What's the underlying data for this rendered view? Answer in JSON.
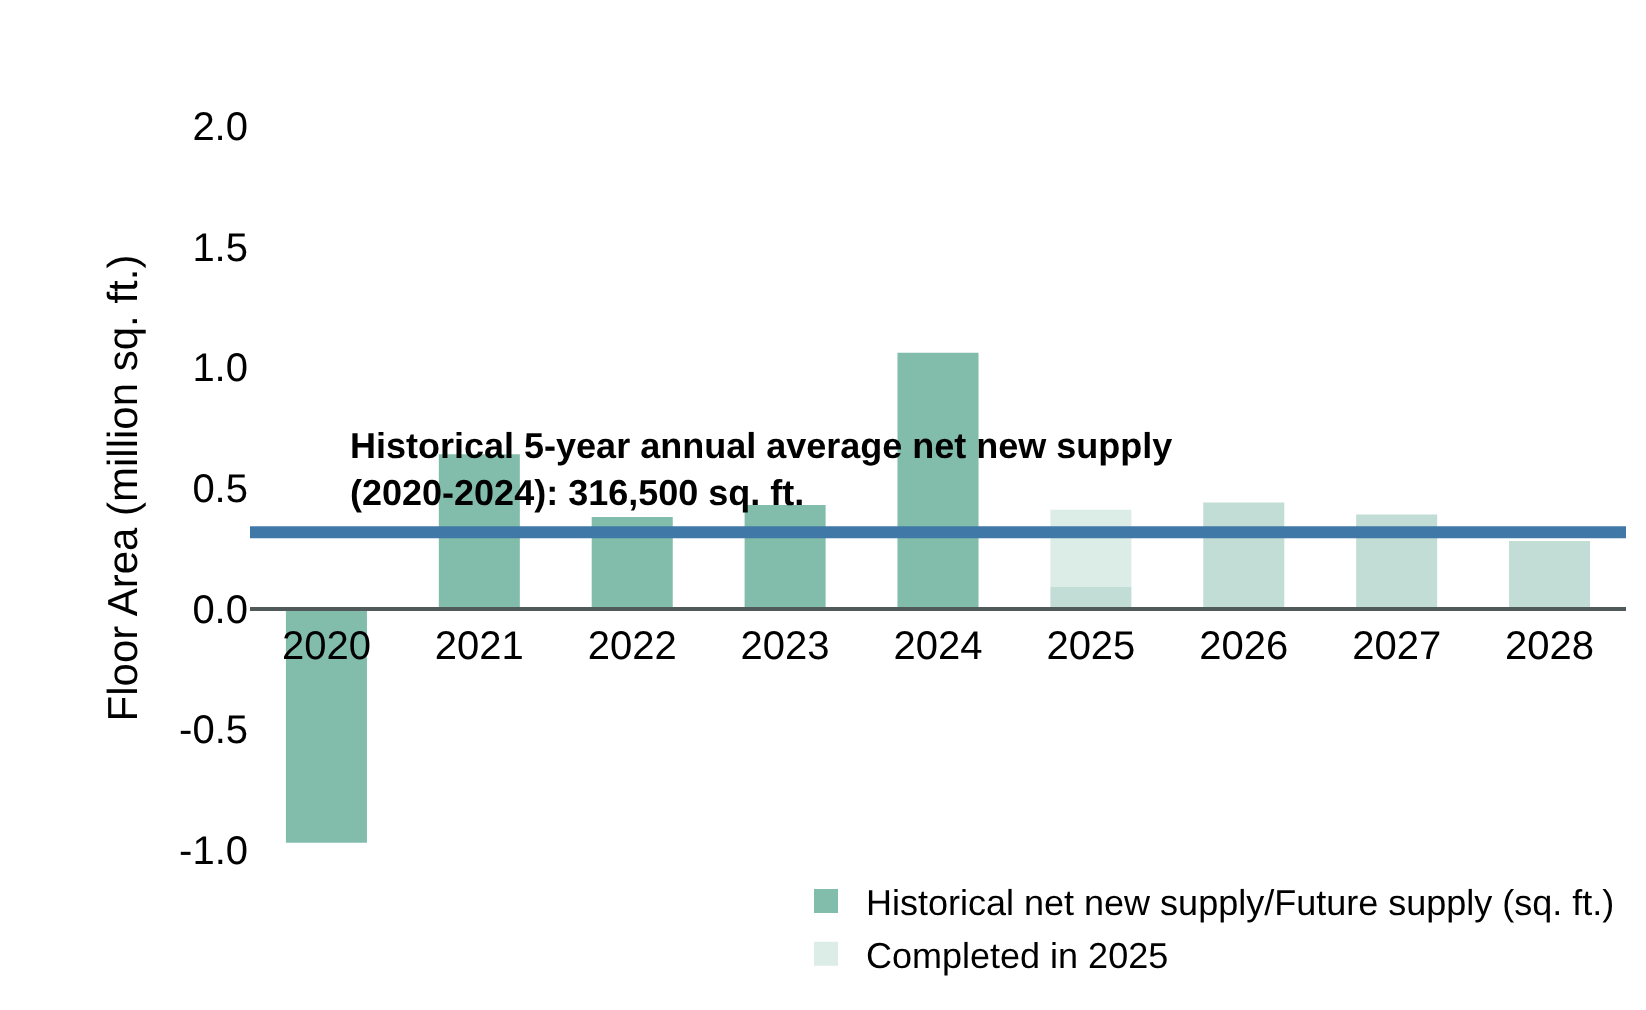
{
  "chart_data": {
    "type": "bar",
    "stacked": true,
    "ylabel": "Floor Area (million sq. ft.)",
    "categories": [
      "2020",
      "2021",
      "2022",
      "2023",
      "2024",
      "2025",
      "2026",
      "2027",
      "2028"
    ],
    "series": [
      {
        "name": "Historical net new supply/Future supply (sq. ft.)",
        "color": "#82bcab",
        "colors": [
          "#82bcab",
          "#82bcab",
          "#82bcab",
          "#82bcab",
          "#82bcab",
          "#c1ddd5",
          "#c1ddd5",
          "#c1ddd5",
          "#c1ddd5"
        ],
        "values": [
          -0.97,
          0.64,
          0.38,
          0.43,
          1.06,
          0.09,
          0.44,
          0.39,
          0.28
        ]
      },
      {
        "name": "Completed in 2025",
        "color": "#dcece7",
        "values": [
          null,
          null,
          null,
          null,
          null,
          0.32,
          null,
          null,
          null
        ]
      }
    ],
    "ylim": [
      -1.0,
      2.0
    ],
    "yticks": [
      {
        "value": -1.0,
        "label": "-1.0"
      },
      {
        "value": -0.5,
        "label": "-0.5"
      },
      {
        "value": 0.0,
        "label": "0.0"
      },
      {
        "value": 0.5,
        "label": "0.5"
      },
      {
        "value": 1.0,
        "label": "1.0"
      },
      {
        "value": 1.5,
        "label": "1.5"
      },
      {
        "value": 2.0,
        "label": "2.0"
      }
    ],
    "ref_lines": [
      {
        "axis": "y",
        "value": 0.3165,
        "color": "#4079a8",
        "label": "Historical 5-year annual average net new supply\n(2020-2024): 316,500 sq. ft."
      }
    ],
    "legend": "bottom right"
  }
}
